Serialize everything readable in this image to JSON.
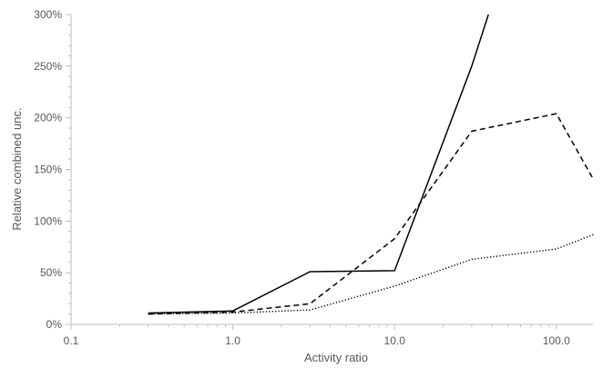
{
  "chart_data": {
    "type": "line",
    "title": "",
    "xlabel": "Activity ratio",
    "ylabel": "Relative combined unc.",
    "x_scale": "log",
    "xlim": [
      0.1,
      180
    ],
    "ylim": [
      0,
      300
    ],
    "x_ticks": [
      0.1,
      1.0,
      10.0,
      100.0
    ],
    "x_tick_labels": [
      "0.1",
      "1.0",
      "10.0",
      "100.0"
    ],
    "y_ticks": [
      0,
      50,
      100,
      150,
      200,
      250,
      300
    ],
    "y_tick_labels": [
      "0%",
      "50%",
      "100%",
      "150%",
      "200%",
      "250%",
      "300%"
    ],
    "grid": false,
    "legend": "none",
    "series": [
      {
        "style": "solid",
        "color": "#000000",
        "x": [
          0.3,
          1.0,
          3.0,
          10.0,
          30.0,
          38.0
        ],
        "y": [
          11,
          13,
          51,
          52,
          250,
          300
        ]
      },
      {
        "style": "dashed",
        "color": "#000000",
        "x": [
          0.3,
          1.0,
          3.0,
          10.0,
          30.0,
          100.0,
          170.0
        ],
        "y": [
          10,
          12,
          20,
          83,
          187,
          204,
          140
        ]
      },
      {
        "style": "dotted",
        "color": "#000000",
        "x": [
          0.3,
          1.0,
          3.0,
          10.0,
          30.0,
          100.0,
          170.0
        ],
        "y": [
          10,
          11,
          14,
          37,
          63,
          73,
          87
        ]
      }
    ]
  }
}
